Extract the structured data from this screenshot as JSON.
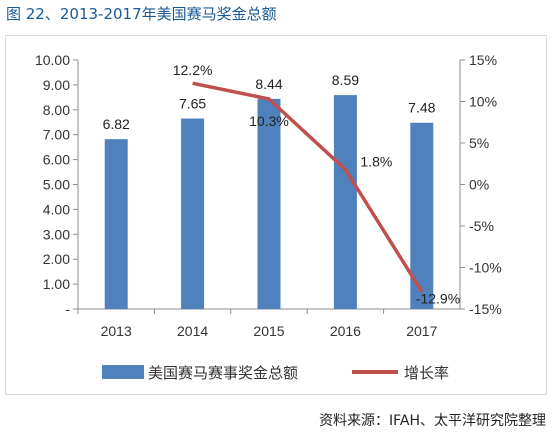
{
  "figure_title": "图 22、2013-2017年美国赛马奖金总额",
  "source": "资料来源：IFAH、太平洋研究院整理",
  "chart_data": {
    "type": "bar",
    "categories": [
      "2013",
      "2014",
      "2015",
      "2016",
      "2017"
    ],
    "series": [
      {
        "name": "美国赛马赛事奖金总额",
        "type": "bar",
        "axis": "left",
        "color": "#4f81bd",
        "values": [
          6.82,
          7.65,
          8.44,
          8.59,
          7.48
        ],
        "labels": [
          "6.82",
          "7.65",
          "8.44",
          "8.59",
          "7.48"
        ]
      },
      {
        "name": "增长率",
        "type": "line",
        "axis": "right",
        "color": "#c0504d",
        "values": [
          null,
          12.2,
          10.3,
          1.8,
          -12.9
        ],
        "labels": [
          "",
          "12.2%",
          "10.3%",
          "1.8%",
          "-12.9%"
        ]
      }
    ],
    "y_left": {
      "min": 0,
      "max": 10,
      "ticks": [
        "10.00",
        "9.00",
        "8.00",
        "7.00",
        "6.00",
        "5.00",
        "4.00",
        "3.00",
        "2.00",
        "1.00",
        "-"
      ]
    },
    "y_right": {
      "min": -15,
      "max": 15,
      "ticks": [
        "15%",
        "10%",
        "5%",
        "0%",
        "-5%",
        "-10%",
        "-15%"
      ]
    },
    "grid": false,
    "legend_position": "bottom"
  }
}
